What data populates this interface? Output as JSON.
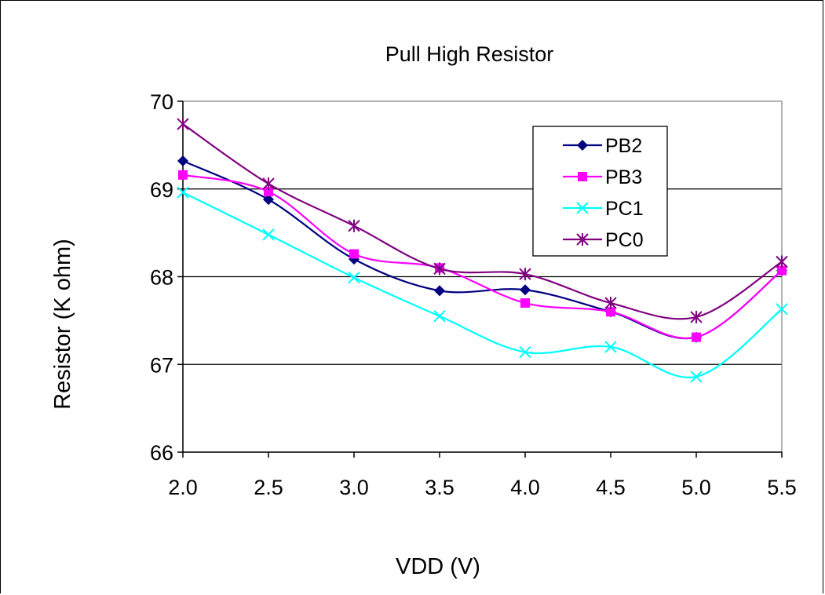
{
  "chart_data": {
    "type": "line",
    "title": "Pull High Resistor",
    "xlabel": "VDD (V)",
    "ylabel": "Resistor (K ohm)",
    "x": [
      2.0,
      2.5,
      3.0,
      3.5,
      4.0,
      4.5,
      5.0,
      5.5
    ],
    "x_tick_labels": [
      "2.0",
      "2.5",
      "3.0",
      "3.5",
      "4.0",
      "4.5",
      "5.0",
      "5.5"
    ],
    "xlim": [
      2.0,
      5.5
    ],
    "ylim": [
      66,
      70
    ],
    "y_ticks": [
      66,
      67,
      68,
      69,
      70
    ],
    "y_tick_labels": [
      "66",
      "67",
      "68",
      "69",
      "70"
    ],
    "grid": "horizontal major gridlines",
    "legend_position": "top-right inside plot",
    "series": [
      {
        "name": "PB2",
        "color": "#000080",
        "marker": "diamond",
        "values": [
          69.32,
          68.88,
          68.2,
          67.84,
          67.85,
          67.6,
          67.31,
          68.07
        ]
      },
      {
        "name": "PB3",
        "color": "#FF00FF",
        "marker": "square",
        "values": [
          69.16,
          68.97,
          68.26,
          68.1,
          67.7,
          67.6,
          67.31,
          68.07
        ]
      },
      {
        "name": "PC1",
        "color": "#00FFFF",
        "marker": "x",
        "values": [
          68.96,
          68.48,
          67.99,
          67.55,
          67.14,
          67.2,
          66.86,
          67.63
        ]
      },
      {
        "name": "PC0",
        "color": "#800080",
        "marker": "star",
        "values": [
          69.74,
          69.06,
          68.58,
          68.09,
          68.03,
          67.7,
          67.54,
          68.17
        ]
      }
    ]
  }
}
